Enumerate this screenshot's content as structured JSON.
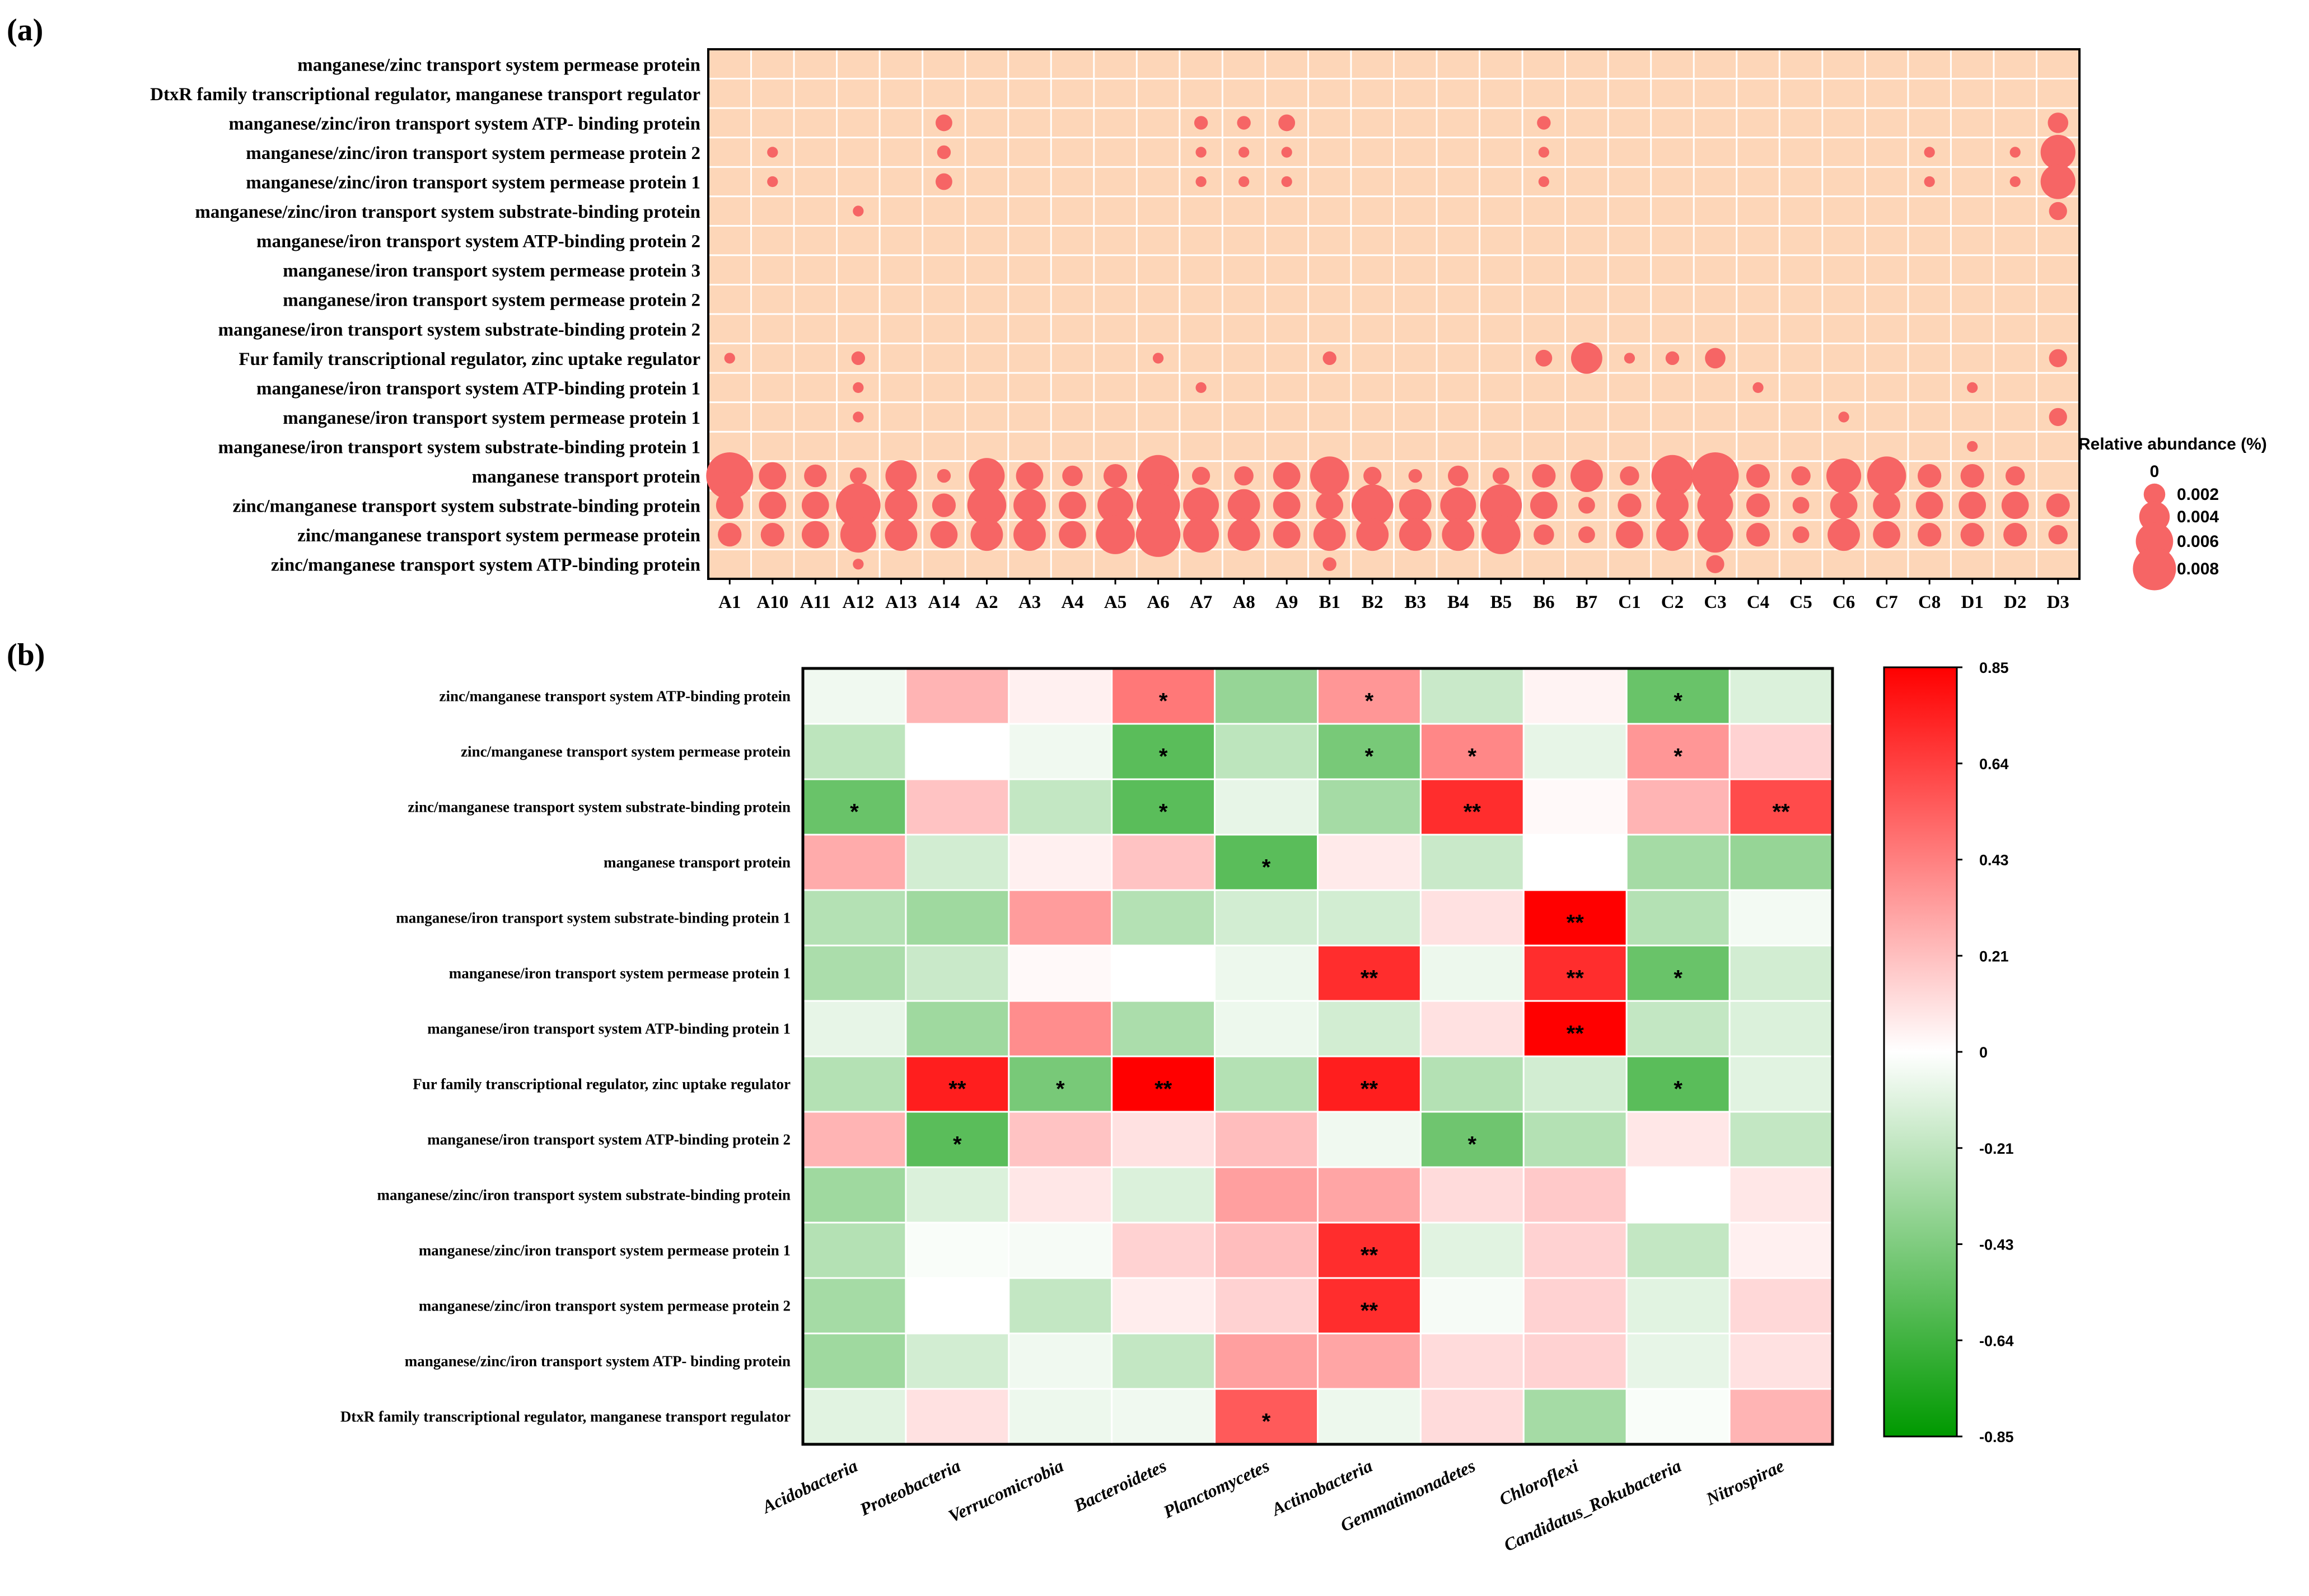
{
  "chart_data": [
    {
      "panel": "(a)",
      "type": "scatter",
      "subtype": "bubble",
      "rows": [
        "manganese/zinc transport system permease protein",
        "DtxR family transcriptional regulator, manganese transport regulator",
        "manganese/zinc/iron transport system ATP- binding protein",
        "manganese/zinc/iron transport system permease protein 2",
        "manganese/zinc/iron transport system permease protein 1",
        "manganese/zinc/iron transport system substrate-binding protein",
        "manganese/iron transport system ATP-binding protein 2",
        "manganese/iron transport system permease protein 3",
        "manganese/iron transport system permease protein 2",
        "manganese/iron transport system substrate-binding protein 2",
        "Fur family transcriptional regulator, zinc uptake regulator",
        "manganese/iron transport system ATP-binding protein 1",
        "manganese/iron transport system permease protein 1",
        "manganese/iron transport system substrate-binding protein 1",
        "manganese transport protein",
        "zinc/manganese transport system substrate-binding protein",
        "zinc/manganese transport system permease protein",
        "zinc/manganese transport system ATP-binding protein"
      ],
      "columns": [
        "A1",
        "A10",
        "A11",
        "A12",
        "A13",
        "A14",
        "A2",
        "A3",
        "A4",
        "A5",
        "A6",
        "A7",
        "A8",
        "A9",
        "B1",
        "B2",
        "B3",
        "B4",
        "B5",
        "B6",
        "B7",
        "C1",
        "C2",
        "C3",
        "C4",
        "C5",
        "C6",
        "C7",
        "C8",
        "D1",
        "D2",
        "D3"
      ],
      "values": {
        "manganese/zinc/iron transport system ATP- binding protein": {
          "A14": 0.0012,
          "A7": 0.0008,
          "A8": 0.0008,
          "A9": 0.0012,
          "B6": 0.0008,
          "D3": 0.0018
        },
        "manganese/zinc/iron transport system permease protein 2": {
          "A10": 0.0005,
          "A14": 0.0008,
          "A7": 0.0005,
          "A8": 0.0005,
          "A9": 0.0005,
          "B6": 0.0005,
          "C8": 0.0005,
          "D2": 0.0005,
          "D3": 0.0052
        },
        "manganese/zinc/iron transport system permease protein 1": {
          "A10": 0.0005,
          "A14": 0.0012,
          "A7": 0.0005,
          "A8": 0.0005,
          "A9": 0.0005,
          "B6": 0.0005,
          "C8": 0.0005,
          "D2": 0.0005,
          "D3": 0.0052
        },
        "manganese/zinc/iron transport system substrate-binding protein": {
          "A12": 0.0005,
          "D3": 0.0014
        },
        "Fur family transcriptional regulator, zinc uptake regulator": {
          "A1": 0.0005,
          "A12": 0.0008,
          "A6": 0.0005,
          "B1": 0.0008,
          "B6": 0.0012,
          "B7": 0.0042,
          "C1": 0.0005,
          "C2": 0.0008,
          "C3": 0.0018,
          "D3": 0.0014
        },
        "manganese/iron transport system ATP-binding protein 1": {
          "A12": 0.0005,
          "A7": 0.0005,
          "C4": 0.0005,
          "D1": 0.0005
        },
        "manganese/iron transport system permease protein 1": {
          "A12": 0.0005,
          "C6": 0.0005,
          "D3": 0.0014
        },
        "manganese/iron transport system substrate-binding protein 1": {
          "D1": 0.0005
        },
        "manganese transport protein": {
          "A1": 0.0095,
          "A10": 0.0032,
          "A11": 0.0022,
          "A12": 0.0012,
          "A13": 0.0042,
          "A14": 0.0008,
          "A2": 0.0055,
          "A3": 0.0032,
          "A4": 0.0018,
          "A5": 0.0024,
          "A6": 0.0075,
          "A7": 0.0014,
          "A8": 0.0016,
          "A9": 0.0032,
          "B1": 0.0065,
          "B2": 0.0014,
          "B3": 0.0008,
          "B4": 0.0018,
          "B5": 0.0012,
          "B6": 0.0024,
          "B7": 0.0045,
          "C1": 0.0016,
          "C2": 0.0075,
          "C3": 0.0095,
          "C4": 0.0024,
          "C5": 0.0016,
          "C6": 0.0052,
          "C7": 0.0065,
          "C8": 0.0024,
          "D1": 0.0024,
          "D2": 0.0016
        },
        "zinc/manganese transport system substrate-binding protein": {
          "A1": 0.0032,
          "A10": 0.0032,
          "A11": 0.0032,
          "A12": 0.0085,
          "A13": 0.0045,
          "A14": 0.0024,
          "A2": 0.0065,
          "A3": 0.0045,
          "A4": 0.0032,
          "A5": 0.0055,
          "A6": 0.0082,
          "A7": 0.0055,
          "A8": 0.0045,
          "A9": 0.0032,
          "B1": 0.0032,
          "B2": 0.0075,
          "B3": 0.0045,
          "B4": 0.0055,
          "B5": 0.0075,
          "B6": 0.0032,
          "B7": 0.0012,
          "C1": 0.0024,
          "C2": 0.0045,
          "C3": 0.0055,
          "C4": 0.0024,
          "C5": 0.0012,
          "C6": 0.0032,
          "C7": 0.0032,
          "C8": 0.0032,
          "D1": 0.0032,
          "D2": 0.0032,
          "D3": 0.0024
        },
        "zinc/manganese transport system permease protein": {
          "A1": 0.0024,
          "A10": 0.0024,
          "A11": 0.0032,
          "A12": 0.0055,
          "A13": 0.0045,
          "A14": 0.0032,
          "A2": 0.0045,
          "A3": 0.0045,
          "A4": 0.0032,
          "A5": 0.0065,
          "A6": 0.0085,
          "A7": 0.0055,
          "A8": 0.0045,
          "A9": 0.0032,
          "B1": 0.0045,
          "B2": 0.0045,
          "B3": 0.0045,
          "B4": 0.0045,
          "B5": 0.0065,
          "B6": 0.0018,
          "B7": 0.0012,
          "C1": 0.0032,
          "C2": 0.0045,
          "C3": 0.0055,
          "C4": 0.0024,
          "C5": 0.0012,
          "C6": 0.0045,
          "C7": 0.0032,
          "C8": 0.0024,
          "D1": 0.0024,
          "D2": 0.0024,
          "D3": 0.0016
        },
        "zinc/manganese transport system ATP-binding protein": {
          "A12": 0.0005,
          "B1": 0.0008,
          "C3": 0.0014
        }
      },
      "legend": {
        "title": "Relative abundance (%)",
        "entries": [
          0,
          0.002,
          0.004,
          0.006,
          0.008
        ],
        "labels": [
          "0",
          "0.002",
          "0.004",
          "0.006",
          "0.008"
        ]
      },
      "colors": {
        "background": "#fdd6b8",
        "bubble": "#f66565",
        "border": "#000000",
        "grid": "#ffffff"
      }
    },
    {
      "panel": "(b)",
      "type": "heatmap",
      "rows": [
        "zinc/manganese transport system ATP-binding protein",
        "zinc/manganese transport system permease protein",
        "zinc/manganese transport system substrate-binding protein",
        "manganese transport protein",
        "manganese/iron transport system substrate-binding protein 1",
        "manganese/iron transport system permease protein 1",
        "manganese/iron transport system ATP-binding protein 1",
        "Fur family transcriptional regulator, zinc uptake regulator",
        "manganese/iron transport system ATP-binding protein 2",
        "manganese/zinc/iron transport system substrate-binding protein",
        "manganese/zinc/iron transport system permease protein 1",
        "manganese/zinc/iron transport system permease protein 2",
        "manganese/zinc/iron transport system ATP- binding protein",
        "DtxR family transcriptional regulator, manganese transport regulator"
      ],
      "columns": [
        "Acidobacteria",
        "Proteobacteria",
        "Verrucomicrobia",
        "Bacteroidetes",
        "Planctomycetes",
        "Actinobacteria",
        "Gemmatimonadetes",
        "Chloroflexi",
        "Candidatus_Rokubacteria",
        "Nitrospirae"
      ],
      "values": [
        [
          -0.05,
          0.25,
          0.05,
          0.45,
          -0.35,
          0.35,
          -0.18,
          0.04,
          -0.5,
          -0.12
        ],
        [
          -0.22,
          0.0,
          -0.05,
          -0.55,
          -0.22,
          -0.45,
          0.4,
          -0.08,
          0.35,
          0.15
        ],
        [
          -0.5,
          0.2,
          -0.2,
          -0.55,
          -0.08,
          -0.3,
          0.7,
          0.02,
          0.25,
          0.6
        ],
        [
          0.28,
          -0.15,
          0.05,
          0.2,
          -0.55,
          0.07,
          -0.18,
          0.0,
          -0.3,
          -0.35
        ],
        [
          -0.25,
          -0.32,
          0.33,
          -0.25,
          -0.15,
          -0.15,
          0.1,
          0.85,
          -0.25,
          -0.04
        ],
        [
          -0.28,
          -0.18,
          0.02,
          0.0,
          -0.06,
          0.7,
          -0.06,
          0.7,
          -0.5,
          -0.15
        ],
        [
          -0.08,
          -0.32,
          0.38,
          -0.28,
          -0.06,
          -0.15,
          0.1,
          0.85,
          -0.2,
          -0.12
        ],
        [
          -0.25,
          0.75,
          -0.45,
          0.85,
          -0.25,
          0.75,
          -0.25,
          -0.15,
          -0.55,
          -0.1
        ],
        [
          0.25,
          -0.55,
          0.2,
          0.1,
          0.22,
          -0.05,
          -0.48,
          -0.25,
          0.08,
          -0.2
        ],
        [
          -0.32,
          -0.12,
          0.08,
          -0.12,
          0.32,
          0.3,
          0.12,
          0.18,
          0.0,
          0.08
        ],
        [
          -0.25,
          -0.02,
          -0.03,
          0.15,
          0.22,
          0.7,
          -0.1,
          0.15,
          -0.2,
          0.05
        ],
        [
          -0.3,
          0.0,
          -0.2,
          0.06,
          0.15,
          0.7,
          -0.03,
          0.15,
          -0.1,
          0.13
        ],
        [
          -0.32,
          -0.15,
          -0.05,
          -0.2,
          0.32,
          0.3,
          0.12,
          0.15,
          -0.08,
          0.1
        ],
        [
          -0.1,
          0.1,
          -0.06,
          -0.05,
          0.55,
          -0.06,
          0.12,
          -0.3,
          -0.02,
          0.25
        ]
      ],
      "significance": [
        [
          "",
          "",
          "",
          "*",
          "",
          "*",
          "",
          "",
          "*",
          ""
        ],
        [
          "",
          "",
          "",
          "*",
          "",
          "*",
          "*",
          "",
          "*",
          ""
        ],
        [
          "*",
          "",
          "",
          "*",
          "",
          "",
          "**",
          "",
          "",
          "**"
        ],
        [
          "",
          "",
          "",
          "",
          "*",
          "",
          "",
          "",
          "",
          ""
        ],
        [
          "",
          "",
          "",
          "",
          "",
          "",
          "",
          "**",
          "",
          ""
        ],
        [
          "",
          "",
          "",
          "",
          "",
          "**",
          "",
          "**",
          "*",
          ""
        ],
        [
          "",
          "",
          "",
          "",
          "",
          "",
          "",
          "**",
          "",
          ""
        ],
        [
          "",
          "**",
          "*",
          "**",
          "",
          "**",
          "",
          "",
          "*",
          ""
        ],
        [
          "",
          "*",
          "",
          "",
          "",
          "",
          "*",
          "",
          "",
          ""
        ],
        [
          "",
          "",
          "",
          "",
          "",
          "",
          "",
          "",
          "",
          ""
        ],
        [
          "",
          "",
          "",
          "",
          "",
          "**",
          "",
          "",
          "",
          ""
        ],
        [
          "",
          "",
          "",
          "",
          "",
          "**",
          "",
          "",
          "",
          ""
        ],
        [
          "",
          "",
          "",
          "",
          "",
          "",
          "",
          "",
          "",
          ""
        ],
        [
          "",
          "",
          "",
          "",
          "*",
          "",
          "",
          "",
          "",
          ""
        ]
      ],
      "colorbar": {
        "range": [
          -0.85,
          0.85
        ],
        "ticks": [
          "0.85",
          "0.64",
          "0.43",
          "0.21",
          "0",
          "-0.21",
          "-0.43",
          "-0.64",
          "-0.85"
        ]
      },
      "colors": {
        "negative": "#009900",
        "zero": "#ffffff",
        "positive": "#ff0000",
        "grid": "#ffffff"
      }
    }
  ]
}
